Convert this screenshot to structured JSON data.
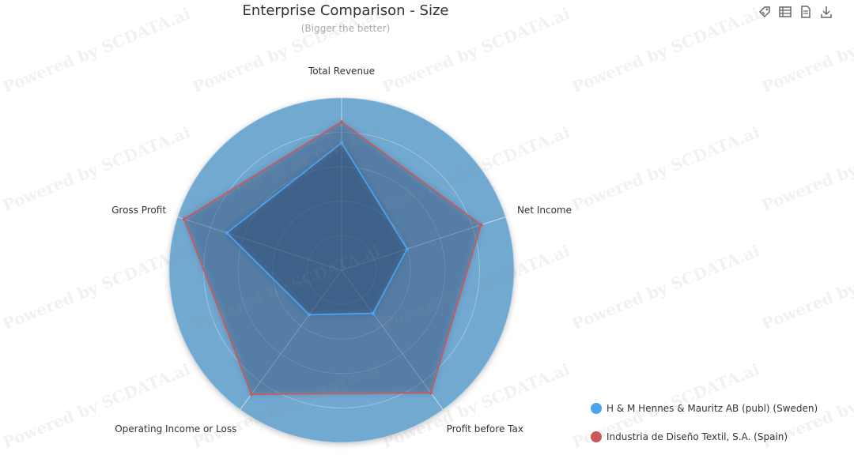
{
  "title": "Enterprise Comparison - Size",
  "subtitle": "(Bigger the better)",
  "watermark_text": "Powered by SCDATA.ai",
  "toolbar": {
    "icons": [
      "tag-icon",
      "data-view-icon",
      "document-icon",
      "download-icon"
    ]
  },
  "colors": {
    "radar_background": "#71a9d1",
    "series_1": "#4aa3f0",
    "series_2": "#c95858",
    "grid": "#b7d2ea"
  },
  "chart_data": {
    "type": "radar",
    "title": "Enterprise Comparison - Size",
    "subtitle": "(Bigger the better)",
    "indicators": [
      "Total Revenue",
      "Net Income",
      "Profit before Tax",
      "Operating Income or Loss",
      "Gross Profit"
    ],
    "max": 100,
    "split_number": 5,
    "series": [
      {
        "name": "H & M Hennes & Mauritz AB (publ) (Sweden)",
        "values": [
          74,
          40,
          31,
          32,
          70
        ],
        "color": "#4aa3f0"
      },
      {
        "name": "Industria de Diseño Textil, S.A. (Spain)",
        "values": [
          86,
          85,
          88,
          89,
          96
        ],
        "color": "#c95858"
      }
    ],
    "legend_position": "bottom-right"
  }
}
